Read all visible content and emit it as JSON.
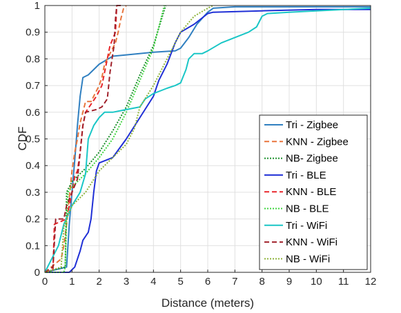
{
  "chart_data": {
    "type": "line",
    "xlabel": "Distance (meters)",
    "ylabel": "CDF",
    "xlim": [
      0,
      12
    ],
    "ylim": [
      0,
      1
    ],
    "x_ticks": [
      "0",
      "1",
      "2",
      "3",
      "4",
      "5",
      "6",
      "7",
      "8",
      "9",
      "10",
      "11",
      "12"
    ],
    "y_ticks": [
      "0",
      "0.1",
      "0.2",
      "0.3",
      "0.4",
      "0.5",
      "0.6",
      "0.7",
      "0.8",
      "0.9",
      "1"
    ],
    "grid": true,
    "legend_position": "right",
    "series": [
      {
        "name": "Tri - Zigbee",
        "color": "#2f7fc0",
        "dash": "solid",
        "points": [
          [
            0,
            0
          ],
          [
            0.8,
            0.02
          ],
          [
            0.9,
            0.18
          ],
          [
            1,
            0.3
          ],
          [
            1.1,
            0.42
          ],
          [
            1.2,
            0.55
          ],
          [
            1.3,
            0.66
          ],
          [
            1.4,
            0.73
          ],
          [
            1.6,
            0.74
          ],
          [
            2,
            0.78
          ],
          [
            2.5,
            0.81
          ],
          [
            3,
            0.815
          ],
          [
            4,
            0.825
          ],
          [
            4.8,
            0.83
          ],
          [
            5,
            0.84
          ],
          [
            5.3,
            0.88
          ],
          [
            5.6,
            0.93
          ],
          [
            6,
            0.975
          ],
          [
            6.2,
            0.99
          ],
          [
            7,
            0.995
          ],
          [
            12,
            0.995
          ]
        ]
      },
      {
        "name": "KNN - Zigbee",
        "color": "#e8743b",
        "dash": "dashed",
        "points": [
          [
            0,
            0
          ],
          [
            0.6,
            0.05
          ],
          [
            0.7,
            0.1
          ],
          [
            0.8,
            0.18
          ],
          [
            0.9,
            0.28
          ],
          [
            1,
            0.38
          ],
          [
            1.1,
            0.45
          ],
          [
            1.2,
            0.5
          ],
          [
            1.3,
            0.56
          ],
          [
            1.5,
            0.64
          ],
          [
            1.7,
            0.64
          ],
          [
            1.8,
            0.66
          ],
          [
            2,
            0.7
          ],
          [
            2.1,
            0.73
          ],
          [
            2.2,
            0.78
          ],
          [
            2.4,
            0.82
          ],
          [
            2.5,
            0.84
          ],
          [
            2.6,
            0.86
          ],
          [
            2.7,
            0.9
          ],
          [
            2.8,
            0.95
          ],
          [
            2.9,
            0.99
          ],
          [
            3,
            1
          ]
        ]
      },
      {
        "name": "NB- Zigbee",
        "color": "#1a8f2a",
        "dash": "dotted",
        "points": [
          [
            0,
            0
          ],
          [
            0.75,
            0.02
          ],
          [
            0.8,
            0.3
          ],
          [
            1,
            0.34
          ],
          [
            1.5,
            0.39
          ],
          [
            2,
            0.45
          ],
          [
            2.5,
            0.53
          ],
          [
            3,
            0.62
          ],
          [
            3.5,
            0.74
          ],
          [
            4,
            0.85
          ],
          [
            4.3,
            0.95
          ],
          [
            4.45,
            1
          ]
        ]
      },
      {
        "name": "Tri - BLE",
        "color": "#1f2fd6",
        "dash": "solid",
        "points": [
          [
            0,
            0
          ],
          [
            0.9,
            0
          ],
          [
            1.1,
            0.02
          ],
          [
            1.3,
            0.08
          ],
          [
            1.4,
            0.12
          ],
          [
            1.6,
            0.15
          ],
          [
            1.7,
            0.2
          ],
          [
            1.8,
            0.3
          ],
          [
            1.9,
            0.38
          ],
          [
            2,
            0.41
          ],
          [
            2.5,
            0.43
          ],
          [
            3,
            0.5
          ],
          [
            3.5,
            0.58
          ],
          [
            4,
            0.66
          ],
          [
            4.2,
            0.72
          ],
          [
            4.5,
            0.78
          ],
          [
            4.8,
            0.86
          ],
          [
            5,
            0.9
          ],
          [
            5.5,
            0.93
          ],
          [
            6,
            0.97
          ],
          [
            6.2,
            0.975
          ],
          [
            8,
            0.98
          ],
          [
            10,
            0.985
          ],
          [
            12,
            0.985
          ]
        ]
      },
      {
        "name": "KNN - BLE",
        "color": "#e8252a",
        "dash": "dashed",
        "points": [
          [
            0,
            0
          ],
          [
            0.3,
            0.01
          ],
          [
            0.35,
            0.18
          ],
          [
            0.8,
            0.2
          ],
          [
            0.9,
            0.25
          ],
          [
            1,
            0.3
          ],
          [
            1.1,
            0.36
          ],
          [
            1.2,
            0.38
          ],
          [
            1.3,
            0.45
          ],
          [
            1.4,
            0.55
          ],
          [
            1.5,
            0.6
          ],
          [
            1.7,
            0.63
          ],
          [
            1.9,
            0.66
          ],
          [
            2.1,
            0.7
          ],
          [
            2.3,
            0.8
          ],
          [
            2.4,
            0.85
          ],
          [
            2.6,
            0.9
          ],
          [
            2.65,
            1
          ],
          [
            2.75,
            1
          ]
        ]
      },
      {
        "name": "NB - BLE",
        "color": "#3fd43f",
        "dash": "dotted",
        "points": [
          [
            0,
            0
          ],
          [
            0.7,
            0
          ],
          [
            0.75,
            0.02
          ],
          [
            0.8,
            0.2
          ],
          [
            0.85,
            0.3
          ],
          [
            1,
            0.32
          ],
          [
            1.5,
            0.37
          ],
          [
            2,
            0.43
          ],
          [
            2.5,
            0.5
          ],
          [
            3,
            0.6
          ],
          [
            3.5,
            0.72
          ],
          [
            4,
            0.84
          ],
          [
            4.3,
            0.96
          ],
          [
            4.4,
            1
          ]
        ]
      },
      {
        "name": "Tri - WiFi",
        "color": "#19c6c6",
        "dash": "solid",
        "points": [
          [
            0,
            0
          ],
          [
            0.5,
            0.1
          ],
          [
            0.7,
            0.18
          ],
          [
            1,
            0.25
          ],
          [
            1.3,
            0.3
          ],
          [
            1.5,
            0.37
          ],
          [
            1.6,
            0.5
          ],
          [
            1.8,
            0.55
          ],
          [
            2,
            0.58
          ],
          [
            2.2,
            0.6
          ],
          [
            2.5,
            0.6
          ],
          [
            3,
            0.61
          ],
          [
            3.5,
            0.62
          ],
          [
            3.7,
            0.65
          ],
          [
            4,
            0.67
          ],
          [
            4.5,
            0.69
          ],
          [
            4.8,
            0.7
          ],
          [
            5,
            0.71
          ],
          [
            5.2,
            0.76
          ],
          [
            5.3,
            0.8
          ],
          [
            5.5,
            0.82
          ],
          [
            5.8,
            0.82
          ],
          [
            6,
            0.83
          ],
          [
            6.5,
            0.86
          ],
          [
            7,
            0.88
          ],
          [
            7.5,
            0.9
          ],
          [
            7.8,
            0.92
          ],
          [
            8,
            0.96
          ],
          [
            8.2,
            0.97
          ],
          [
            9,
            0.975
          ],
          [
            10,
            0.98
          ],
          [
            12,
            0.99
          ]
        ]
      },
      {
        "name": "KNN - WiFi",
        "color": "#a0202a",
        "dash": "dashed",
        "points": [
          [
            0,
            0
          ],
          [
            0.3,
            0.02
          ],
          [
            0.4,
            0.2
          ],
          [
            0.7,
            0.2
          ],
          [
            0.8,
            0.25
          ],
          [
            1,
            0.3
          ],
          [
            1.2,
            0.35
          ],
          [
            1.4,
            0.55
          ],
          [
            1.5,
            0.6
          ],
          [
            1.9,
            0.61
          ],
          [
            2.1,
            0.62
          ],
          [
            2.3,
            0.65
          ],
          [
            2.4,
            0.75
          ],
          [
            2.55,
            0.85
          ],
          [
            2.6,
            0.95
          ],
          [
            2.65,
            1
          ],
          [
            2.8,
            1
          ]
        ]
      },
      {
        "name": "NB - WiFi",
        "color": "#8db33a",
        "dash": "dotted",
        "points": [
          [
            0,
            0
          ],
          [
            0.6,
            0.02
          ],
          [
            0.7,
            0.17
          ],
          [
            0.8,
            0.2
          ],
          [
            1,
            0.25
          ],
          [
            1.5,
            0.3
          ],
          [
            2,
            0.38
          ],
          [
            2.5,
            0.43
          ],
          [
            3,
            0.48
          ],
          [
            3.3,
            0.54
          ],
          [
            3.5,
            0.62
          ],
          [
            4,
            0.7
          ],
          [
            4.5,
            0.8
          ],
          [
            5,
            0.9
          ],
          [
            5.5,
            0.96
          ],
          [
            6,
            0.99
          ],
          [
            6.2,
            1
          ]
        ]
      }
    ]
  }
}
